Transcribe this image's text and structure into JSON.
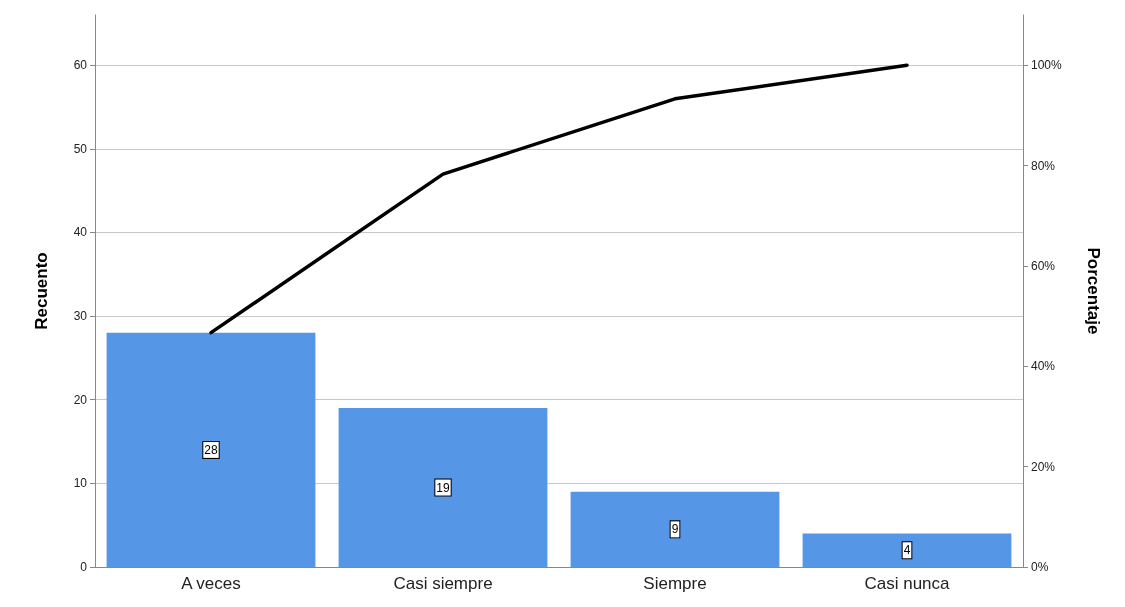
{
  "chart_data": {
    "type": "bar",
    "ylabel": "Recuento",
    "y2label": "Porcentaje",
    "categories": [
      "A veces",
      "Casi siempre",
      "Siempre",
      "Casi nunca"
    ],
    "series": [
      {
        "color": "#5596e6",
        "values": [
          28,
          19,
          9,
          4
        ],
        "value_labels": [
          "28",
          "19",
          "9",
          "4"
        ]
      },
      {
        "type": "line",
        "axis": "y2",
        "color": "#000000",
        "values": [
          46.7,
          78.3,
          93.3,
          100
        ]
      }
    ],
    "ylim": [
      0,
      66
    ],
    "yticks": [
      0,
      10,
      20,
      30,
      40,
      50,
      60
    ],
    "y2lim": [
      0,
      110
    ],
    "y2ticks": [
      {
        "value": 0,
        "label": "0%"
      },
      {
        "value": 20,
        "label": "20%"
      },
      {
        "value": 40,
        "label": "40%"
      },
      {
        "value": 60,
        "label": "60%"
      },
      {
        "value": 80,
        "label": "80%"
      },
      {
        "value": 100,
        "label": "100%"
      }
    ],
    "grid": "y",
    "marker": "none",
    "line_style": "solid"
  }
}
